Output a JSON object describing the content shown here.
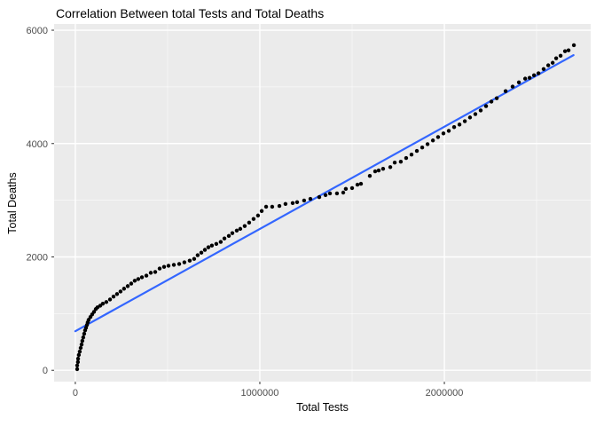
{
  "title": "Correlation Between total Tests and Total Deaths",
  "axes": {
    "x_label": "Total Tests",
    "y_label": "Total Deaths"
  },
  "colors": {
    "panel_background": "#EBEBEB",
    "major_grid": "#FFFFFF",
    "minor_grid": "#FFFFFF",
    "point": "#000000",
    "regression_line": "#3366FF",
    "tick_label": "#4D4D4D",
    "tick_mark": "#333333",
    "title_text": "#000000"
  },
  "chart_data": {
    "type": "scatter",
    "title": "Correlation Between total Tests and Total Deaths",
    "xlabel": "Total Tests",
    "ylabel": "Total Deaths",
    "legend": "none",
    "grid": "on",
    "xlim": [
      -115000,
      2793000
    ],
    "ylim": [
      -200,
      6110
    ],
    "x_tick_values": [
      0,
      1000000,
      2000000
    ],
    "x_tick_labels": [
      "0",
      "1000000",
      "2000000"
    ],
    "x_minor_values": [
      500000,
      1500000,
      2500000
    ],
    "y_tick_values": [
      0,
      2000,
      4000,
      6000
    ],
    "y_tick_labels": [
      "0",
      "2000",
      "4000",
      "6000"
    ],
    "y_minor_values": [
      1000,
      3000,
      5000
    ],
    "regression_line": {
      "x": [
        0,
        2700000
      ],
      "y": [
        690,
        5560
      ]
    },
    "points": [
      [
        10000,
        20
      ],
      [
        10000,
        85
      ],
      [
        14000,
        145
      ],
      [
        15000,
        205
      ],
      [
        19000,
        270
      ],
      [
        24000,
        330
      ],
      [
        29000,
        395
      ],
      [
        34000,
        455
      ],
      [
        38000,
        520
      ],
      [
        43000,
        580
      ],
      [
        48000,
        645
      ],
      [
        53000,
        705
      ],
      [
        58000,
        750
      ],
      [
        63000,
        800
      ],
      [
        67000,
        845
      ],
      [
        72000,
        890
      ],
      [
        82000,
        940
      ],
      [
        91000,
        985
      ],
      [
        101000,
        1030
      ],
      [
        111000,
        1080
      ],
      [
        120000,
        1110
      ],
      [
        135000,
        1140
      ],
      [
        149000,
        1175
      ],
      [
        168000,
        1205
      ],
      [
        188000,
        1250
      ],
      [
        207000,
        1300
      ],
      [
        226000,
        1345
      ],
      [
        245000,
        1390
      ],
      [
        264000,
        1440
      ],
      [
        284000,
        1485
      ],
      [
        303000,
        1530
      ],
      [
        322000,
        1580
      ],
      [
        341000,
        1610
      ],
      [
        361000,
        1640
      ],
      [
        385000,
        1670
      ],
      [
        409000,
        1720
      ],
      [
        433000,
        1735
      ],
      [
        457000,
        1795
      ],
      [
        481000,
        1825
      ],
      [
        505000,
        1845
      ],
      [
        534000,
        1860
      ],
      [
        563000,
        1875
      ],
      [
        591000,
        1905
      ],
      [
        620000,
        1935
      ],
      [
        644000,
        1965
      ],
      [
        663000,
        2030
      ],
      [
        683000,
        2075
      ],
      [
        702000,
        2125
      ],
      [
        721000,
        2170
      ],
      [
        740000,
        2200
      ],
      [
        764000,
        2230
      ],
      [
        788000,
        2265
      ],
      [
        808000,
        2325
      ],
      [
        832000,
        2370
      ],
      [
        851000,
        2420
      ],
      [
        875000,
        2465
      ],
      [
        894000,
        2495
      ],
      [
        918000,
        2545
      ],
      [
        942000,
        2605
      ],
      [
        966000,
        2670
      ],
      [
        990000,
        2730
      ],
      [
        1010000,
        2810
      ],
      [
        1034000,
        2885
      ],
      [
        1067000,
        2885
      ],
      [
        1106000,
        2900
      ],
      [
        1139000,
        2935
      ],
      [
        1178000,
        2950
      ],
      [
        1202000,
        2965
      ],
      [
        1240000,
        2995
      ],
      [
        1274000,
        3025
      ],
      [
        1322000,
        3055
      ],
      [
        1356000,
        3090
      ],
      [
        1380000,
        3120
      ],
      [
        1418000,
        3120
      ],
      [
        1452000,
        3135
      ],
      [
        1466000,
        3200
      ],
      [
        1500000,
        3215
      ],
      [
        1529000,
        3275
      ],
      [
        1548000,
        3290
      ],
      [
        1596000,
        3430
      ],
      [
        1625000,
        3510
      ],
      [
        1644000,
        3525
      ],
      [
        1668000,
        3555
      ],
      [
        1707000,
        3585
      ],
      [
        1731000,
        3665
      ],
      [
        1764000,
        3680
      ],
      [
        1793000,
        3745
      ],
      [
        1822000,
        3805
      ],
      [
        1851000,
        3870
      ],
      [
        1880000,
        3930
      ],
      [
        1909000,
        3990
      ],
      [
        1938000,
        4055
      ],
      [
        1966000,
        4115
      ],
      [
        1995000,
        4180
      ],
      [
        2024000,
        4225
      ],
      [
        2053000,
        4290
      ],
      [
        2082000,
        4335
      ],
      [
        2111000,
        4395
      ],
      [
        2139000,
        4460
      ],
      [
        2168000,
        4520
      ],
      [
        2197000,
        4585
      ],
      [
        2226000,
        4660
      ],
      [
        2255000,
        4740
      ],
      [
        2284000,
        4800
      ],
      [
        2332000,
        4925
      ],
      [
        2370000,
        5005
      ],
      [
        2404000,
        5080
      ],
      [
        2438000,
        5145
      ],
      [
        2462000,
        5160
      ],
      [
        2486000,
        5205
      ],
      [
        2510000,
        5240
      ],
      [
        2538000,
        5315
      ],
      [
        2563000,
        5380
      ],
      [
        2587000,
        5425
      ],
      [
        2606000,
        5505
      ],
      [
        2630000,
        5550
      ],
      [
        2654000,
        5630
      ],
      [
        2673000,
        5645
      ],
      [
        2702000,
        5735
      ]
    ]
  }
}
